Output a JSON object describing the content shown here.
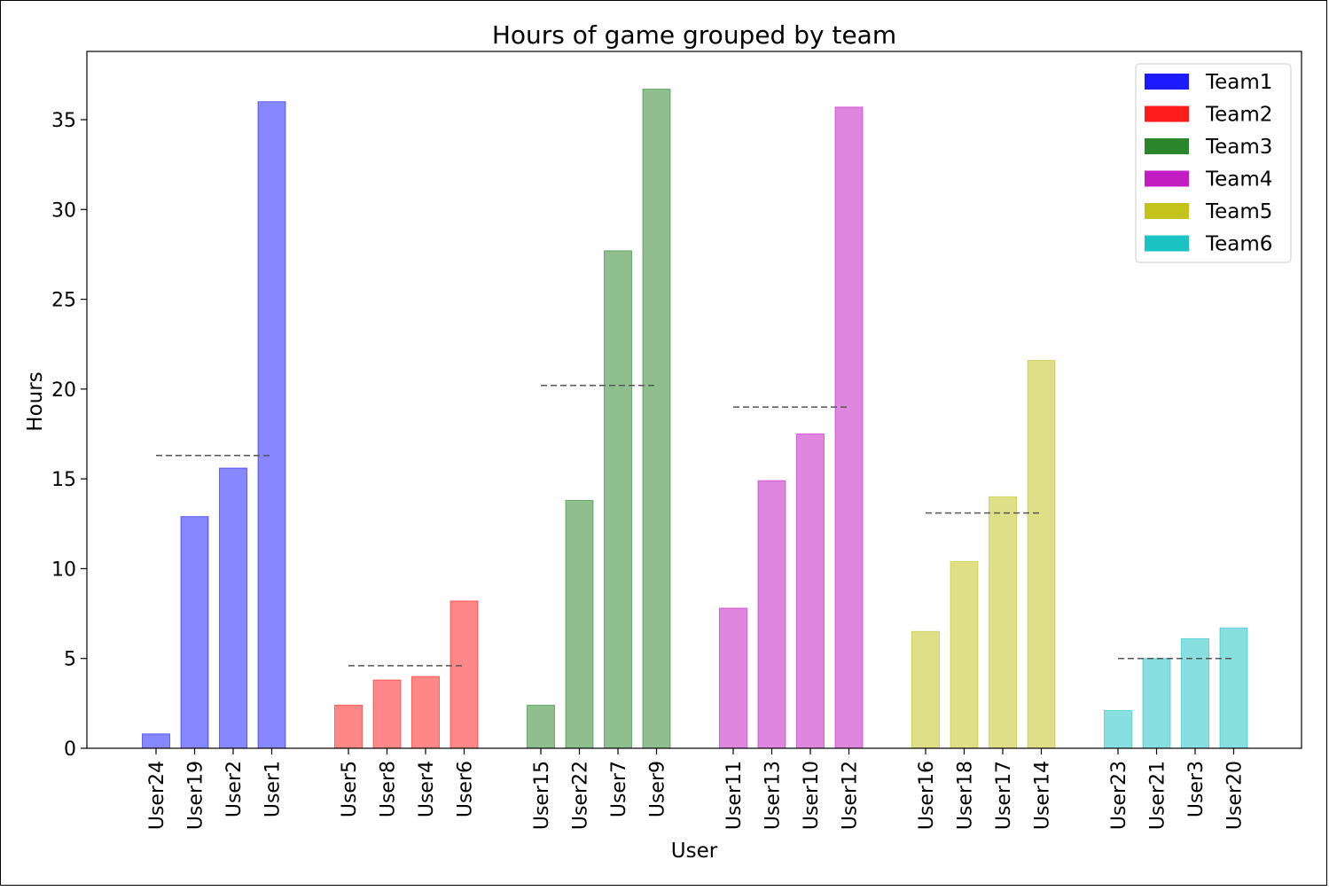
{
  "chart_data": {
    "type": "bar",
    "title": "Hours of game grouped by team",
    "xlabel": "User",
    "ylabel": "Hours",
    "ylim": [
      0,
      38.8
    ],
    "yticks": [
      0,
      5,
      10,
      15,
      20,
      25,
      30,
      35
    ],
    "grid": false,
    "legend_position": "top-right",
    "mean_line_style": "dashed gray",
    "teams": [
      {
        "name": "Team1",
        "color": "#1010ff",
        "users": [
          "User24",
          "User19",
          "User2",
          "User1"
        ],
        "values": [
          0.8,
          12.9,
          15.6,
          36.0
        ],
        "mean": 16.3
      },
      {
        "name": "Team2",
        "color": "#ff1010",
        "users": [
          "User5",
          "User8",
          "User4",
          "User6"
        ],
        "values": [
          2.4,
          3.8,
          4.0,
          8.2
        ],
        "mean": 4.6
      },
      {
        "name": "Team3",
        "color": "#208020",
        "users": [
          "User15",
          "User22",
          "User7",
          "User9"
        ],
        "values": [
          2.4,
          13.8,
          27.7,
          36.7
        ],
        "mean": 20.2
      },
      {
        "name": "Team4",
        "color": "#c010c0",
        "users": [
          "User11",
          "User13",
          "User10",
          "User12"
        ],
        "values": [
          7.8,
          14.9,
          17.5,
          35.7
        ],
        "mean": 19.0
      },
      {
        "name": "Team5",
        "color": "#c0c010",
        "users": [
          "User16",
          "User18",
          "User17",
          "User14"
        ],
        "values": [
          6.5,
          10.4,
          14.0,
          21.6
        ],
        "mean": 13.1
      },
      {
        "name": "Team6",
        "color": "#10c0c0",
        "users": [
          "User23",
          "User21",
          "User3",
          "User20"
        ],
        "values": [
          2.1,
          5.0,
          6.1,
          6.7
        ],
        "mean": 5.0
      }
    ]
  }
}
